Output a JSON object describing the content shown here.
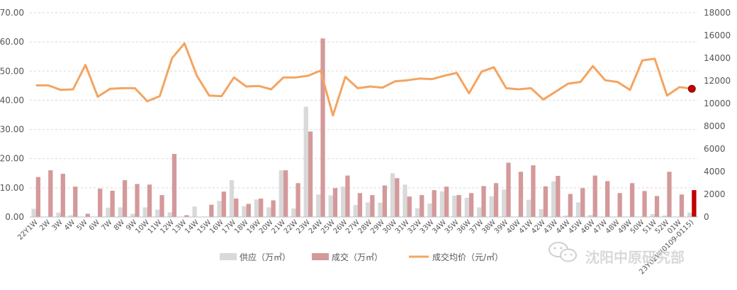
{
  "chart_data": {
    "type": "bar",
    "categories": [
      "22Y1W",
      "2W",
      "3W",
      "4W",
      "5W",
      "6W",
      "7W",
      "8W",
      "9W",
      "10W",
      "11W",
      "12W",
      "13W",
      "14W",
      "15W",
      "16W",
      "17W",
      "18W",
      "19W",
      "20W",
      "21W",
      "22W",
      "23W",
      "24W",
      "25W",
      "26W",
      "27W",
      "28W",
      "29W",
      "30W",
      "31W",
      "32W",
      "33W",
      "34W",
      "35W",
      "36W",
      "37W",
      "38W",
      "39W",
      "40W",
      "41W",
      "42W",
      "43W",
      "44W",
      "45W",
      "46W",
      "47W",
      "48W",
      "49W",
      "50W",
      "51W",
      "52W",
      "01W",
      "23Y02W(0109-0115)"
    ],
    "series": [
      {
        "name": "供应（万㎡）",
        "type": "bar",
        "axis": "left",
        "color": "#d9d9d9",
        "values": [
          2.8,
          0,
          1.5,
          0.6,
          0,
          0,
          3.2,
          3.3,
          1.1,
          3.3,
          2.5,
          1.6,
          0,
          3.6,
          0,
          5.5,
          12.6,
          3.7,
          6,
          3.3,
          16,
          2.9,
          37.8,
          7.7,
          7.4,
          10.4,
          4.1,
          5,
          4.9,
          15,
          11.1,
          3,
          4.6,
          8.8,
          7.3,
          6.6,
          3.3,
          7.1,
          9.4,
          0,
          5.9,
          2.7,
          12.2,
          0.5,
          5,
          0.7,
          0,
          0,
          0,
          0,
          1,
          0.5,
          0,
          1.5
        ]
      },
      {
        "name": "成交（万㎡）",
        "type": "bar",
        "axis": "left",
        "color": "#d4999b",
        "highlight_last_color": "#c00000",
        "values": [
          13.7,
          16,
          14.8,
          10.4,
          1.1,
          9.7,
          9,
          12.6,
          11.3,
          11.1,
          7.5,
          21.6,
          0.6,
          0,
          4.2,
          8.7,
          6.3,
          4.5,
          6.3,
          5.7,
          16,
          11.6,
          29.3,
          61.2,
          9.9,
          14.2,
          8.2,
          7.5,
          10.8,
          13.3,
          7,
          7.5,
          9.2,
          10.4,
          7.5,
          8.2,
          10.6,
          11.6,
          18.6,
          15.5,
          17.7,
          10.5,
          14.1,
          7.9,
          9.9,
          14.2,
          12.3,
          8.2,
          11.6,
          8.9,
          7.2,
          15.5,
          7.7,
          9.2
        ]
      },
      {
        "name": "成交均价（元/㎡）",
        "type": "line",
        "axis": "right",
        "color": "#f4a460",
        "values": [
          11600,
          11600,
          11200,
          11250,
          13400,
          10600,
          11300,
          11350,
          11350,
          10200,
          10650,
          14000,
          15300,
          12450,
          10700,
          10650,
          12300,
          11500,
          11550,
          11250,
          12300,
          12300,
          12450,
          12900,
          8950,
          12350,
          11350,
          11500,
          11400,
          11950,
          12050,
          12200,
          12150,
          12450,
          12700,
          10900,
          12800,
          13200,
          11350,
          11250,
          11350,
          10350,
          11050,
          11750,
          11900,
          13300,
          12050,
          11900,
          11200,
          13800,
          13950,
          10700,
          11450,
          11300
        ]
      }
    ],
    "y_left": {
      "ylim": [
        0,
        70
      ],
      "ticks": [
        "0.00",
        "10.00",
        "20.00",
        "30.00",
        "40.00",
        "50.00",
        "60.00",
        "70.00"
      ]
    },
    "y_right": {
      "ylim": [
        0,
        18000
      ],
      "ticks": [
        "0",
        "2000",
        "4000",
        "6000",
        "8000",
        "10000",
        "12000",
        "14000",
        "16000",
        "18000"
      ]
    },
    "grid": true,
    "legend_position": "bottom-center"
  },
  "watermark": {
    "text": "沈阳中原研究部",
    "icon": "wechat-icon"
  }
}
